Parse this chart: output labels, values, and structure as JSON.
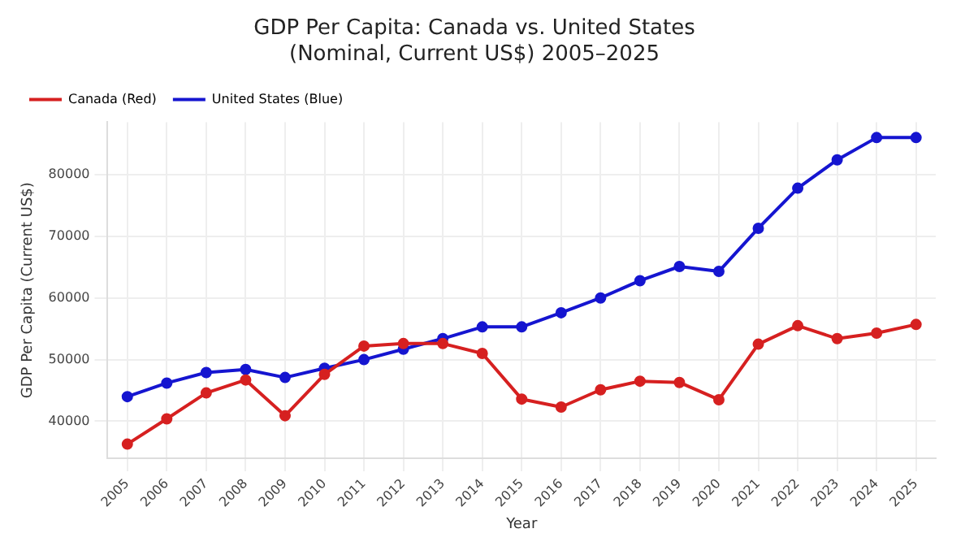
{
  "chart_data": {
    "type": "line",
    "title": "GDP Per Capita: Canada vs. United States\n(Nominal, Current US$) 2005–2025",
    "xlabel": "Year",
    "ylabel": "GDP Per Capita (Current US$)",
    "categories": [
      "2005",
      "2006",
      "2007",
      "2008",
      "2009",
      "2010",
      "2011",
      "2012",
      "2013",
      "2014",
      "2015",
      "2016",
      "2017",
      "2018",
      "2019",
      "2020",
      "2021",
      "2022",
      "2023",
      "2024",
      "2025"
    ],
    "series": [
      {
        "name": "Canada (Red)",
        "color": "#d62020",
        "values": [
          36300,
          40400,
          44600,
          46700,
          40900,
          47600,
          52200,
          52600,
          52600,
          51000,
          43600,
          42300,
          45100,
          46500,
          46300,
          43500,
          52500,
          55500,
          53400,
          54300,
          55700
        ]
      },
      {
        "name": "United States (Blue)",
        "color": "#1515d0",
        "values": [
          44000,
          46200,
          47900,
          48400,
          47100,
          48600,
          50000,
          51700,
          53400,
          55300,
          55300,
          57600,
          60000,
          62800,
          65100,
          64300,
          71300,
          77800,
          82400,
          86000,
          86000
        ]
      }
    ],
    "ylim": [
      34000,
      88500
    ],
    "yticks": [
      40000,
      50000,
      60000,
      70000,
      80000
    ],
    "grid": true,
    "legend": "top left",
    "marker": "circle",
    "line_style": "solid"
  }
}
